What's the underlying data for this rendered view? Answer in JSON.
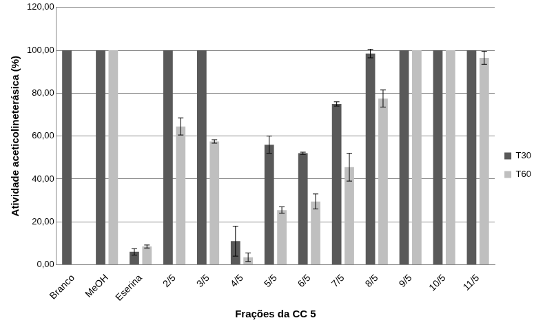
{
  "chart_data": {
    "type": "bar",
    "x_label": "Frações da CC 5",
    "y_label": "Atividade aceticolineterásica (%)",
    "categories": [
      "Branco",
      "MeOH",
      "Eserina",
      "2/5",
      "3/5",
      "4/5",
      "5/5",
      "6/5",
      "7/5",
      "8/5",
      "9/5",
      "10/5",
      "11/5"
    ],
    "series": [
      {
        "name": "T30",
        "color": "#595959",
        "values": [
          100,
          100,
          6,
          100,
          100,
          11,
          56,
          52,
          75,
          98.5,
          100,
          100,
          100
        ],
        "errors": [
          null,
          null,
          1.5,
          null,
          null,
          7,
          4,
          0.5,
          1,
          2,
          null,
          null,
          null
        ]
      },
      {
        "name": "T60",
        "color": "#bfbfbf",
        "values": [
          null,
          100,
          8.5,
          64.5,
          57.5,
          3.5,
          25.5,
          29.5,
          45.5,
          77.5,
          100,
          100,
          96.5
        ],
        "errors": [
          null,
          null,
          0.7,
          4,
          0.8,
          2,
          1.5,
          3.5,
          6.5,
          4,
          null,
          null,
          3
        ]
      }
    ],
    "ylim": [
      0,
      120
    ],
    "yticks": [
      {
        "value": 0,
        "label": "0,00"
      },
      {
        "value": 20,
        "label": "20,00"
      },
      {
        "value": 40,
        "label": "40,00"
      },
      {
        "value": 60,
        "label": "60,00"
      },
      {
        "value": 80,
        "label": "80,00"
      },
      {
        "value": 100,
        "label": "100,00"
      },
      {
        "value": 120,
        "label": "120,00"
      }
    ],
    "grid": true,
    "legend": "right"
  }
}
